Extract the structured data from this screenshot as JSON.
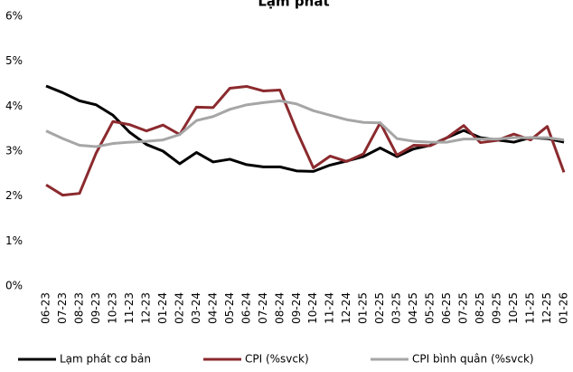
{
  "chart_data": {
    "type": "line",
    "title": "Lạm phát",
    "categories": [
      "06-23",
      "07-23",
      "08-23",
      "09-23",
      "10-23",
      "11-23",
      "12-23",
      "01-24",
      "02-24",
      "03-24",
      "04-24",
      "05-24",
      "06-24",
      "07-24",
      "08-24",
      "09-24",
      "10-24",
      "11-24",
      "12-24",
      "01-25",
      "02-25",
      "03-25",
      "04-25",
      "05-25",
      "06-25",
      "07-25",
      "08-25",
      "09-25",
      "10-25",
      "11-25",
      "12-25",
      "01-26"
    ],
    "series": [
      {
        "name": "Lạm phát cơ bản",
        "color": "#000000",
        "values": [
          4.45,
          4.3,
          4.12,
          4.03,
          3.8,
          3.42,
          3.15,
          3.0,
          2.72,
          2.97,
          2.76,
          2.82,
          2.7,
          2.65,
          2.65,
          2.56,
          2.55,
          2.69,
          2.78,
          2.88,
          3.07,
          2.88,
          3.05,
          3.13,
          3.3,
          3.46,
          3.3,
          3.25,
          3.2,
          3.3,
          3.28,
          3.2
        ]
      },
      {
        "name": "CPI (%svck)",
        "color": "#8b2a2e",
        "values": [
          2.25,
          2.02,
          2.06,
          2.96,
          3.66,
          3.59,
          3.45,
          3.58,
          3.37,
          3.98,
          3.97,
          4.4,
          4.44,
          4.34,
          4.36,
          3.45,
          2.63,
          2.89,
          2.77,
          2.94,
          3.63,
          2.91,
          3.13,
          3.12,
          3.3,
          3.57,
          3.19,
          3.24,
          3.38,
          3.25,
          3.55,
          2.53
        ]
      },
      {
        "name": "CPI bình quân (%svck)",
        "color": "#a6a6a6",
        "values": [
          3.45,
          3.28,
          3.13,
          3.1,
          3.17,
          3.2,
          3.22,
          3.25,
          3.37,
          3.68,
          3.77,
          3.93,
          4.03,
          4.08,
          4.12,
          4.05,
          3.9,
          3.8,
          3.7,
          3.64,
          3.63,
          3.28,
          3.22,
          3.2,
          3.2,
          3.27,
          3.27,
          3.27,
          3.3,
          3.3,
          3.3,
          3.25
        ]
      }
    ],
    "ylim": [
      0,
      6
    ],
    "yticks": [
      {
        "value": 0,
        "label": "0%"
      },
      {
        "value": 1,
        "label": "1%"
      },
      {
        "value": 2,
        "label": "2%"
      },
      {
        "value": 3,
        "label": "3%"
      },
      {
        "value": 4,
        "label": "4%"
      },
      {
        "value": 5,
        "label": "5%"
      },
      {
        "value": 6,
        "label": "6%"
      }
    ],
    "legend": "bottom"
  }
}
